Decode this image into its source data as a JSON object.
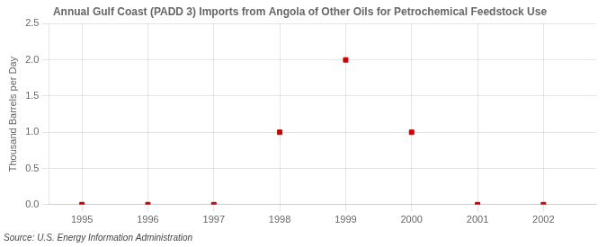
{
  "chart_data": {
    "type": "scatter",
    "title": "Annual Gulf Coast (PADD 3) Imports from Angola of Other Oils for Petrochemical Feedstock Use",
    "ylabel": "Thousand Barrels per Day",
    "annotations": [
      "Source: U.S. Energy Information Administration"
    ],
    "x": [
      1995,
      1996,
      1997,
      1998,
      1999,
      2000,
      2001,
      2002
    ],
    "values": [
      0,
      0,
      0,
      1.0,
      2.0,
      1.0,
      0,
      0
    ],
    "color": "#cc0000",
    "marker": "square",
    "xlim": [
      1994.5,
      2002.8
    ],
    "ylim": [
      0,
      2.5
    ],
    "xticks": [
      1995,
      1996,
      1997,
      1998,
      1999,
      2000,
      2001,
      2002
    ],
    "yticks": [
      {
        "value": 0,
        "label": "0.0"
      },
      0.5,
      {
        "value": 1,
        "label": "1.0"
      },
      1.5,
      {
        "value": 2,
        "label": "2.0"
      },
      2.5
    ],
    "grid": true
  }
}
